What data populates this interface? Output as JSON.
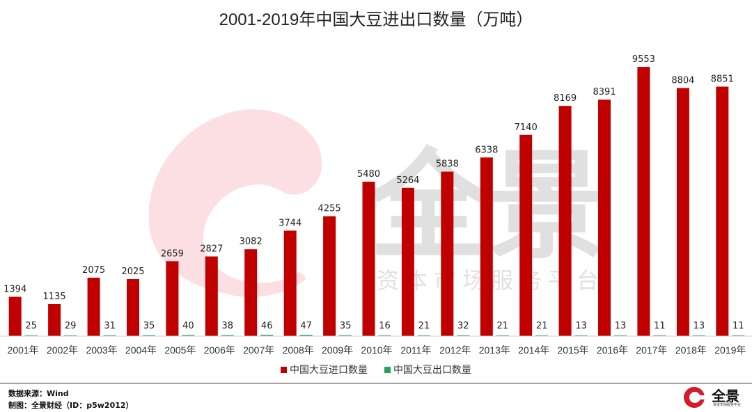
{
  "chart_data": {
    "type": "bar",
    "title": "2001-2019年中国大豆进出口数量（万吨）",
    "categories": [
      "2001年",
      "2002年",
      "2003年",
      "2004年",
      "2005年",
      "2006年",
      "2007年",
      "2008年",
      "2009年",
      "2010年",
      "2011年",
      "2012年",
      "2013年",
      "2014年",
      "2015年",
      "2016年",
      "2017年",
      "2018年",
      "2019年"
    ],
    "series": [
      {
        "name": "中国大豆进口数量",
        "color": "#c00000",
        "values": [
          1394,
          1135,
          2075,
          2025,
          2659,
          2827,
          3082,
          3744,
          4255,
          5480,
          5264,
          5838,
          6338,
          7140,
          8169,
          8391,
          9553,
          8804,
          8851
        ]
      },
      {
        "name": "中国大豆出口数量",
        "color": "#22a35a",
        "values": [
          25,
          29,
          31,
          35,
          40,
          38,
          46,
          47,
          35,
          16,
          21,
          32,
          21,
          21,
          13,
          13,
          11,
          13,
          11
        ]
      }
    ],
    "ylim": [
      0,
      10000
    ],
    "xlabel": "",
    "ylabel": "",
    "grid": false,
    "legend_position": "bottom"
  },
  "footer": {
    "source": "数据来源：Wind",
    "credit": "制图：全景财经（ID：p5w2012）"
  },
  "watermark": {
    "brand": "全景",
    "tagline": "资本市场服务平台"
  },
  "colors": {
    "import": "#c00000",
    "export": "#22a35a",
    "watermark_gray": "#e0e0e0",
    "watermark_pink": "#fbdfe2"
  }
}
